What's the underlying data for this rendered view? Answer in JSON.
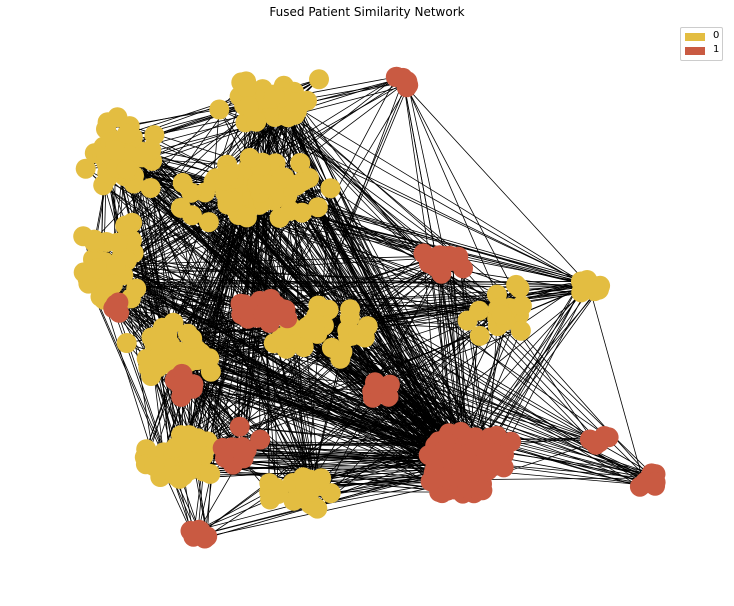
{
  "title": "Fused Patient Similarity Network",
  "colors": {
    "class_0": "#e3bd41",
    "class_1": "#c95a42",
    "edge": "#000000"
  },
  "legend": [
    {
      "label": "0",
      "color": "#e3bd41"
    },
    {
      "label": "1",
      "color": "#c95a42"
    }
  ]
}
